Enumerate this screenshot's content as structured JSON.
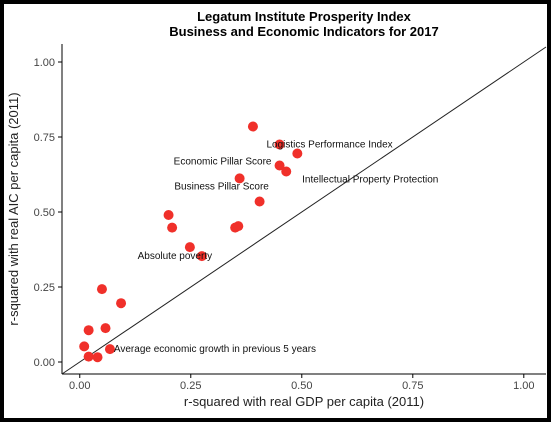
{
  "chart_data": {
    "type": "scatter",
    "title": "Legatum Institute Prosperity Index",
    "subtitle": "Business and Economic Indicators for 2017",
    "xlabel": "r-squared with real GDP per capita (2011)",
    "ylabel": "r-squared with real AIC per capita (2011)",
    "xlim": [
      -0.04,
      1.05
    ],
    "ylim": [
      -0.04,
      1.06
    ],
    "xticks": [
      0,
      0.25,
      0.5,
      0.75,
      1.0
    ],
    "yticks": [
      0,
      0.25,
      0.5,
      0.75,
      1.0
    ],
    "xtick_labels": [
      "0.00",
      "0.25",
      "0.50",
      "0.75",
      "1.00"
    ],
    "ytick_labels": [
      "0.00",
      "0.25",
      "0.50",
      "0.75",
      "1.00"
    ],
    "grid": false,
    "point_color": "#f0302a",
    "reference_line": {
      "x": [
        -0.04,
        1.05
      ],
      "y": [
        -0.04,
        1.05
      ]
    },
    "points": [
      {
        "x": 0.39,
        "y": 0.785
      },
      {
        "x": 0.45,
        "y": 0.725,
        "label": "Logistics Performance Index"
      },
      {
        "x": 0.49,
        "y": 0.695
      },
      {
        "x": 0.45,
        "y": 0.655,
        "label": "Economic Pillar Score"
      },
      {
        "x": 0.465,
        "y": 0.635,
        "label": "Intellectual Property Protection"
      },
      {
        "x": 0.36,
        "y": 0.612,
        "label": "Business Pillar Score"
      },
      {
        "x": 0.405,
        "y": 0.535
      },
      {
        "x": 0.2,
        "y": 0.49
      },
      {
        "x": 0.208,
        "y": 0.448
      },
      {
        "x": 0.35,
        "y": 0.448
      },
      {
        "x": 0.357,
        "y": 0.453
      },
      {
        "x": 0.248,
        "y": 0.383
      },
      {
        "x": 0.275,
        "y": 0.353,
        "label": "Absolute poverty"
      },
      {
        "x": 0.05,
        "y": 0.243
      },
      {
        "x": 0.093,
        "y": 0.196
      },
      {
        "x": 0.02,
        "y": 0.106
      },
      {
        "x": 0.058,
        "y": 0.113
      },
      {
        "x": 0.01,
        "y": 0.052
      },
      {
        "x": 0.068,
        "y": 0.043,
        "label": "Average economic growth in previous 5 years"
      },
      {
        "x": 0.02,
        "y": 0.018
      },
      {
        "x": 0.04,
        "y": 0.016
      }
    ]
  }
}
